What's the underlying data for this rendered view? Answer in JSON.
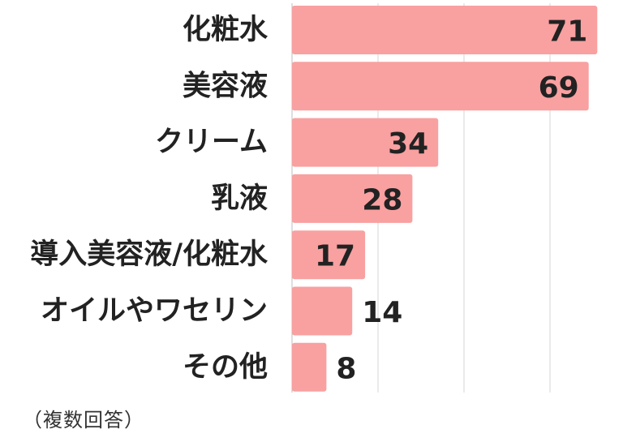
{
  "chart_data": {
    "type": "bar",
    "orientation": "horizontal",
    "categories": [
      "化粧水",
      "美容液",
      "クリーム",
      "乳液",
      "導入美容液/化粧水",
      "オイルやワセリン",
      "その他"
    ],
    "values": [
      71,
      69,
      34,
      28,
      17,
      14,
      8
    ],
    "xlim": [
      0,
      75
    ],
    "gridlines": [
      20,
      40,
      60
    ],
    "grid": true,
    "bar_color": "#f9a0a0",
    "legend": "none"
  },
  "footnote": "（複数回答）"
}
